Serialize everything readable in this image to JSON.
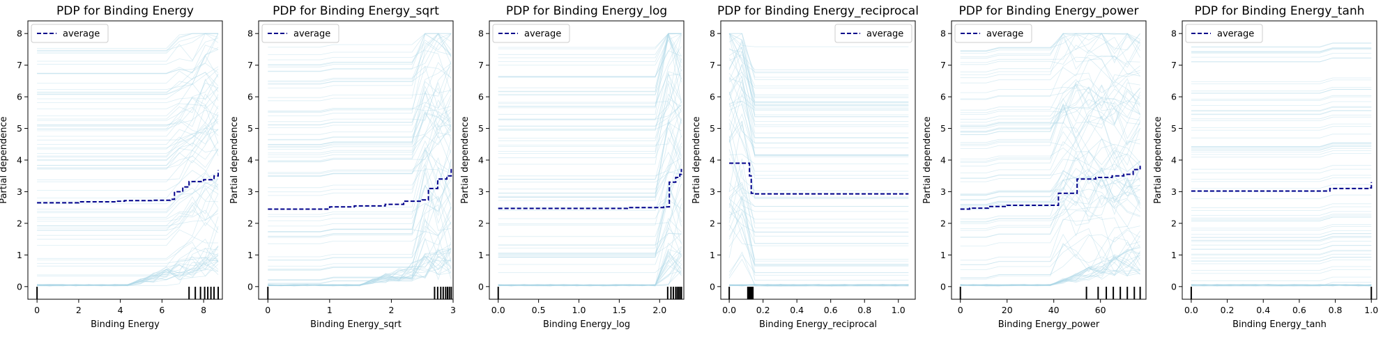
{
  "figure": {
    "ylabel": "Partial dependence",
    "legend_label": "average",
    "colors": {
      "ice": "#add8e6",
      "average": "#00008b",
      "rug": "#000000",
      "axes": "#000000"
    }
  },
  "chart_data": [
    {
      "type": "line",
      "title": "PDP for Binding Energy",
      "xlabel": "Binding Energy",
      "ylabel": "Partial dependence",
      "xlim": [
        -0.44,
        8.9
      ],
      "ylim": [
        -0.4,
        8.4
      ],
      "xticks": [
        0,
        2,
        4,
        6,
        8
      ],
      "xtick_labels": [
        "0",
        "2",
        "4",
        "6",
        "8"
      ],
      "yticks": [
        0,
        1,
        2,
        3,
        4,
        5,
        6,
        7,
        8
      ],
      "ytick_labels": [
        "0",
        "1",
        "2",
        "3",
        "4",
        "5",
        "6",
        "7",
        "8"
      ],
      "legend": "top-left",
      "grid": false,
      "average": {
        "name": "average",
        "x": [
          0,
          2,
          3.8,
          4.2,
          5.5,
          6.4,
          6.6,
          7.0,
          7.3,
          8.0,
          8.5,
          8.7
        ],
        "y": [
          2.65,
          2.68,
          2.7,
          2.72,
          2.73,
          2.76,
          3.0,
          3.15,
          3.32,
          3.38,
          3.5,
          3.68
        ]
      },
      "rug": [
        0,
        7.3,
        7.6,
        7.85,
        8.05,
        8.2,
        8.35,
        8.5,
        8.7
      ]
    },
    {
      "type": "line",
      "title": "PDP for Binding Energy_sqrt",
      "xlabel": "Binding Energy_sqrt",
      "ylabel": "Partial dependence",
      "xlim": [
        -0.15,
        3.0
      ],
      "ylim": [
        -0.4,
        8.4
      ],
      "xticks": [
        0,
        1,
        2,
        3
      ],
      "xtick_labels": [
        "0",
        "1",
        "2",
        "3"
      ],
      "yticks": [
        0,
        1,
        2,
        3,
        4,
        5,
        6,
        7,
        8
      ],
      "ytick_labels": [
        "0",
        "1",
        "2",
        "3",
        "4",
        "5",
        "6",
        "7",
        "8"
      ],
      "legend": "top-left",
      "grid": false,
      "average": {
        "name": "average",
        "x": [
          0,
          1.0,
          1.4,
          1.9,
          2.2,
          2.5,
          2.6,
          2.75,
          2.9,
          2.97
        ],
        "y": [
          2.45,
          2.52,
          2.55,
          2.6,
          2.7,
          2.74,
          3.1,
          3.4,
          3.5,
          3.72
        ]
      },
      "rug": [
        0,
        2.7,
        2.75,
        2.8,
        2.84,
        2.88,
        2.91,
        2.94,
        2.97
      ]
    },
    {
      "type": "line",
      "title": "PDP for Binding Energy_log",
      "xlabel": "Binding Energy_log",
      "ylabel": "Partial dependence",
      "xlim": [
        -0.11,
        2.3
      ],
      "ylim": [
        -0.4,
        8.4
      ],
      "xticks": [
        0.0,
        0.5,
        1.0,
        1.5,
        2.0
      ],
      "xtick_labels": [
        "0.0",
        "0.5",
        "1.0",
        "1.5",
        "2.0"
      ],
      "yticks": [
        0,
        1,
        2,
        3,
        4,
        5,
        6,
        7,
        8
      ],
      "ytick_labels": [
        "0",
        "1",
        "2",
        "3",
        "4",
        "5",
        "6",
        "7",
        "8"
      ],
      "legend": "top-left",
      "grid": false,
      "average": {
        "name": "average",
        "x": [
          0,
          1.0,
          1.6,
          1.8,
          2.05,
          2.12,
          2.2,
          2.25,
          2.27
        ],
        "y": [
          2.47,
          2.47,
          2.5,
          2.5,
          2.52,
          3.3,
          3.45,
          3.55,
          3.72
        ]
      },
      "rug": [
        0,
        2.1,
        2.14,
        2.17,
        2.2,
        2.22,
        2.24,
        2.26,
        2.27
      ]
    },
    {
      "type": "line",
      "title": "PDP for Binding Energy_reciprocal",
      "xlabel": "Binding Energy_reciprocal",
      "ylabel": "Partial dependence",
      "xlim": [
        -0.05,
        1.1
      ],
      "ylim": [
        -0.4,
        8.4
      ],
      "xticks": [
        0.0,
        0.2,
        0.4,
        0.6,
        0.8,
        1.0
      ],
      "xtick_labels": [
        "0.0",
        "0.2",
        "0.4",
        "0.6",
        "0.8",
        "1.0"
      ],
      "yticks": [
        0,
        1,
        2,
        3,
        4,
        5,
        6,
        7,
        8
      ],
      "ytick_labels": [
        "0",
        "1",
        "2",
        "3",
        "4",
        "5",
        "6",
        "7",
        "8"
      ],
      "legend": "top-right",
      "grid": false,
      "average": {
        "name": "average",
        "x": [
          0,
          0.11,
          0.12,
          0.13,
          0.15,
          0.5,
          1.06
        ],
        "y": [
          3.9,
          3.9,
          3.5,
          2.95,
          2.93,
          2.93,
          2.93
        ]
      },
      "rug": [
        0,
        0.11,
        0.115,
        0.12,
        0.125,
        0.13,
        0.135,
        0.14
      ]
    },
    {
      "type": "line",
      "title": "PDP for Binding Energy_power",
      "xlabel": "Binding Energy_power",
      "ylabel": "Partial dependence",
      "xlim": [
        -3.8,
        79.5
      ],
      "ylim": [
        -0.4,
        8.4
      ],
      "xticks": [
        0,
        20,
        40,
        60
      ],
      "xtick_labels": [
        "0",
        "20",
        "40",
        "60"
      ],
      "yticks": [
        0,
        1,
        2,
        3,
        4,
        5,
        6,
        7,
        8
      ],
      "ytick_labels": [
        "0",
        "1",
        "2",
        "3",
        "4",
        "5",
        "6",
        "7",
        "8"
      ],
      "legend": "top-left",
      "grid": false,
      "average": {
        "name": "average",
        "x": [
          0,
          4,
          12,
          20,
          30,
          42,
          46,
          50,
          58,
          65,
          70,
          74,
          77
        ],
        "y": [
          2.45,
          2.48,
          2.53,
          2.57,
          2.57,
          2.95,
          2.95,
          3.4,
          3.45,
          3.5,
          3.55,
          3.7,
          3.82
        ]
      },
      "rug": [
        0,
        54,
        59,
        62.5,
        65.5,
        68.5,
        71.5,
        74.5,
        77
      ]
    },
    {
      "type": "line",
      "title": "PDP for Binding Energy_tanh",
      "xlabel": "Binding Energy_tanh",
      "ylabel": "Partial dependence",
      "xlim": [
        -0.05,
        1.03
      ],
      "ylim": [
        -0.4,
        8.4
      ],
      "xticks": [
        0.0,
        0.2,
        0.4,
        0.6,
        0.8,
        1.0
      ],
      "xtick_labels": [
        "0.0",
        "0.2",
        "0.4",
        "0.6",
        "0.8",
        "1.0"
      ],
      "yticks": [
        0,
        1,
        2,
        3,
        4,
        5,
        6,
        7,
        8
      ],
      "ytick_labels": [
        "0",
        "1",
        "2",
        "3",
        "4",
        "5",
        "6",
        "7",
        "8"
      ],
      "legend": "top-left",
      "grid": false,
      "average": {
        "name": "average",
        "x": [
          0,
          0.5,
          0.76,
          0.77,
          0.99,
          1.0
        ],
        "y": [
          3.02,
          3.02,
          3.02,
          3.1,
          3.12,
          3.3
        ]
      },
      "rug": [
        0,
        1.0
      ]
    }
  ]
}
